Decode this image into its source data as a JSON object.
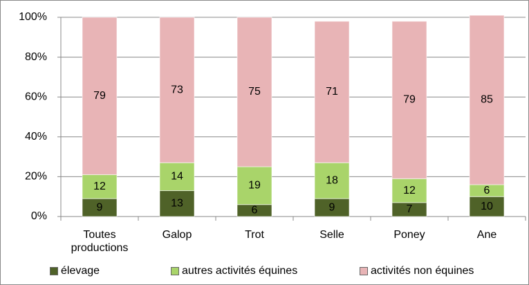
{
  "chart_data": {
    "type": "bar",
    "stacked": true,
    "categories": [
      "Toutes productions",
      "Galop",
      "Trot",
      "Selle",
      "Poney",
      "Ane"
    ],
    "series": [
      {
        "name": "élevage",
        "color": "#4f6228",
        "values": [
          9,
          13,
          6,
          9,
          7,
          10
        ]
      },
      {
        "name": "autres activités équines",
        "color": "#a9d46a",
        "values": [
          12,
          14,
          19,
          18,
          12,
          6
        ]
      },
      {
        "name": "activités non équines",
        "color": "#e8b4b6",
        "values": [
          79,
          73,
          75,
          71,
          79,
          85
        ]
      }
    ],
    "ylim": [
      0,
      100
    ],
    "yticks": [
      {
        "value": 0,
        "label": "0%"
      },
      {
        "value": 20,
        "label": "20%"
      },
      {
        "value": 40,
        "label": "40%"
      },
      {
        "value": 60,
        "label": "60%"
      },
      {
        "value": 80,
        "label": "80%"
      },
      {
        "value": 100,
        "label": "100%"
      }
    ],
    "grid": true,
    "legend": "bottom"
  }
}
